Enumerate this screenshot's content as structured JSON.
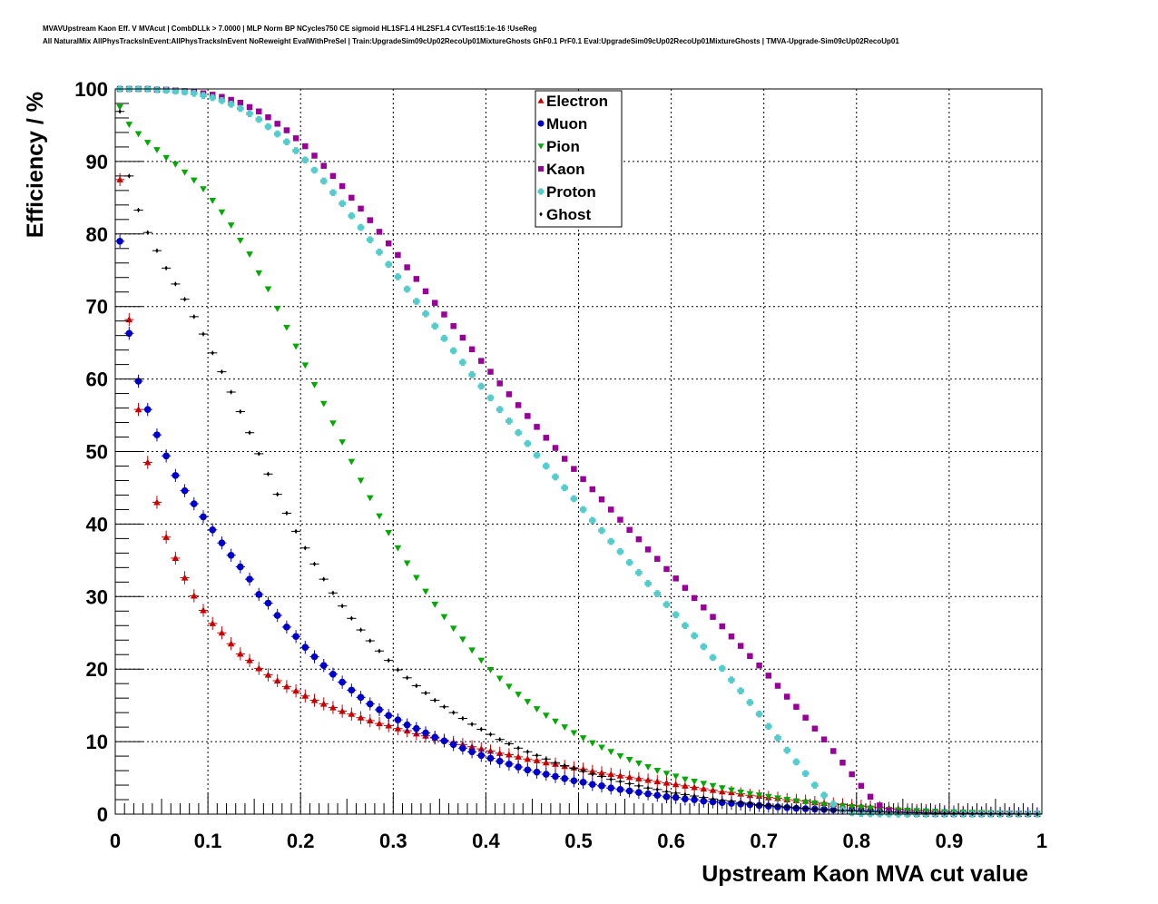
{
  "header": {
    "line1": "MVAVUpstream Kaon Eff. V MVAcut | CombDLLk > 7.0000 | MLP Norm BP NCycles750 CE sigmoid HL1SF1.4 HL2SF1.4 CVTest15:1e-16 !UseReg",
    "line2": "All NaturalMix AllPhysTracksInEvent:AllPhysTracksInEvent NoReweight EvalWithPreSel | Train:UpgradeSim09cUp02RecoUp01MixtureGhosts GhF0.1 PrF0.1 Eval:UpgradeSim09cUp02RecoUp01MixtureGhosts | TMVA-Upgrade-Sim09cUp02RecoUp01"
  },
  "chart_data": {
    "type": "scatter",
    "xlabel": "Upstream Kaon MVA cut value",
    "ylabel": "Efficiency / %",
    "xlim": [
      0,
      1
    ],
    "ylim": [
      0,
      100
    ],
    "xticks": [
      "0",
      "0.1",
      "0.2",
      "0.3",
      "0.4",
      "0.5",
      "0.6",
      "0.7",
      "0.8",
      "0.9",
      "1"
    ],
    "yticks": [
      "0",
      "10",
      "20",
      "30",
      "40",
      "50",
      "60",
      "70",
      "80",
      "90",
      "100"
    ],
    "grid": true,
    "legend_position": "top-center",
    "x": [
      0.005,
      0.015,
      0.025,
      0.035,
      0.045,
      0.055,
      0.065,
      0.075,
      0.085,
      0.095,
      0.105,
      0.115,
      0.125,
      0.135,
      0.145,
      0.155,
      0.165,
      0.175,
      0.185,
      0.195,
      0.205,
      0.215,
      0.225,
      0.235,
      0.245,
      0.255,
      0.265,
      0.275,
      0.285,
      0.295,
      0.305,
      0.315,
      0.325,
      0.335,
      0.345,
      0.355,
      0.365,
      0.375,
      0.385,
      0.395,
      0.405,
      0.415,
      0.425,
      0.435,
      0.445,
      0.455,
      0.465,
      0.475,
      0.485,
      0.495,
      0.505,
      0.515,
      0.525,
      0.535,
      0.545,
      0.555,
      0.565,
      0.575,
      0.585,
      0.595,
      0.605,
      0.615,
      0.625,
      0.635,
      0.645,
      0.655,
      0.665,
      0.675,
      0.685,
      0.695,
      0.705,
      0.715,
      0.725,
      0.735,
      0.745,
      0.755,
      0.765,
      0.775,
      0.785,
      0.795,
      0.805,
      0.815,
      0.825,
      0.835,
      0.845,
      0.855,
      0.865,
      0.875,
      0.885,
      0.895,
      0.905,
      0.915,
      0.925,
      0.935,
      0.945,
      0.955,
      0.965,
      0.975,
      0.985,
      0.995
    ],
    "series": [
      {
        "name": "Electron",
        "marker": "triangle-up",
        "color": "#cc0000",
        "values": [
          87.5,
          68.2,
          55.8,
          48.5,
          43.0,
          38.2,
          35.3,
          32.6,
          30.1,
          28.1,
          26.3,
          25.0,
          23.5,
          22.1,
          21.2,
          20.1,
          19.2,
          18.4,
          17.6,
          17.0,
          16.3,
          15.7,
          15.2,
          14.7,
          14.2,
          13.8,
          13.3,
          12.9,
          12.5,
          12.2,
          11.8,
          11.5,
          11.1,
          10.8,
          10.5,
          10.2,
          9.9,
          9.6,
          9.3,
          9.0,
          8.7,
          8.4,
          8.2,
          7.9,
          7.6,
          7.4,
          7.1,
          6.9,
          6.6,
          6.4,
          6.2,
          5.9,
          5.7,
          5.5,
          5.3,
          5.1,
          4.9,
          4.7,
          4.5,
          4.3,
          4.1,
          3.9,
          3.7,
          3.5,
          3.3,
          3.1,
          3.0,
          2.8,
          2.6,
          2.5,
          2.3,
          2.2,
          2.0,
          1.9,
          1.8,
          1.6,
          1.5,
          1.4,
          1.3,
          1.2,
          1.1,
          1.0,
          0.9,
          0.8,
          0.7,
          0.6,
          0.5,
          0.5,
          0.4,
          0.35,
          0.3,
          0.25,
          0.2,
          0.18,
          0.15,
          0.12,
          0.1,
          0.08,
          0.06,
          0.04
        ]
      },
      {
        "name": "Muon",
        "marker": "circle",
        "color": "#0000cc",
        "values": [
          79.0,
          66.3,
          59.7,
          55.8,
          52.3,
          49.4,
          46.7,
          44.6,
          42.8,
          41.0,
          39.2,
          37.4,
          35.7,
          34.1,
          32.4,
          30.3,
          29.1,
          27.4,
          25.8,
          24.5,
          23.0,
          21.7,
          20.5,
          19.3,
          18.2,
          17.1,
          16.1,
          15.2,
          14.4,
          13.6,
          13.0,
          12.3,
          11.8,
          11.2,
          10.6,
          10.1,
          9.6,
          9.1,
          8.6,
          8.1,
          7.7,
          7.3,
          6.9,
          6.5,
          6.1,
          5.8,
          5.5,
          5.2,
          4.9,
          4.6,
          4.4,
          4.1,
          3.9,
          3.6,
          3.4,
          3.2,
          3.0,
          2.8,
          2.6,
          2.4,
          2.3,
          2.1,
          2.0,
          1.8,
          1.7,
          1.6,
          1.5,
          1.4,
          1.3,
          1.2,
          1.1,
          1.0,
          0.9,
          0.8,
          0.75,
          0.7,
          0.65,
          0.6,
          0.55,
          0.5,
          0.45,
          0.4,
          0.35,
          0.3,
          0.28,
          0.25,
          0.22,
          0.2,
          0.18,
          0.16,
          0.14,
          0.12,
          0.1,
          0.09,
          0.08,
          0.07,
          0.06,
          0.05,
          0.04,
          0.03
        ]
      },
      {
        "name": "Pion",
        "marker": "triangle-down",
        "color": "#00aa00",
        "values": [
          97.5,
          95.1,
          93.8,
          92.6,
          91.6,
          90.5,
          89.6,
          88.5,
          87.4,
          86.2,
          84.6,
          83.0,
          81.2,
          79.1,
          77.2,
          74.6,
          72.4,
          69.7,
          67.1,
          64.5,
          61.9,
          59.2,
          56.6,
          53.9,
          51.3,
          48.6,
          46.0,
          43.6,
          41.1,
          38.8,
          36.7,
          34.6,
          32.6,
          30.7,
          28.9,
          27.2,
          25.6,
          24.1,
          22.6,
          21.2,
          19.9,
          18.7,
          17.6,
          16.5,
          15.5,
          14.5,
          13.6,
          12.8,
          12.0,
          11.2,
          10.5,
          9.8,
          9.2,
          8.6,
          8.0,
          7.5,
          7.0,
          6.5,
          6.0,
          5.6,
          5.2,
          4.8,
          4.5,
          4.2,
          3.9,
          3.6,
          3.3,
          3.0,
          2.8,
          2.6,
          2.4,
          2.2,
          2.0,
          1.8,
          1.6,
          1.5,
          1.3,
          1.2,
          1.1,
          1.0,
          0.9,
          0.8,
          0.7,
          0.6,
          0.55,
          0.5,
          0.45,
          0.4,
          0.35,
          0.3,
          0.27,
          0.24,
          0.21,
          0.18,
          0.15,
          0.12,
          0.1,
          0.08,
          0.06,
          0.04
        ]
      },
      {
        "name": "Kaon",
        "marker": "square",
        "color": "#990099",
        "values": [
          100,
          100,
          100,
          100,
          99.9,
          99.9,
          99.8,
          99.7,
          99.6,
          99.4,
          99.2,
          98.9,
          98.5,
          98.1,
          97.5,
          96.9,
          96.1,
          95.2,
          94.3,
          93.2,
          92.1,
          90.8,
          89.4,
          88.0,
          86.6,
          85.0,
          83.5,
          81.9,
          80.3,
          78.7,
          77.1,
          75.4,
          73.8,
          72.1,
          70.5,
          68.9,
          67.3,
          65.7,
          64.1,
          62.5,
          61.0,
          59.4,
          57.9,
          56.4,
          54.9,
          53.4,
          51.9,
          50.5,
          49.0,
          47.6,
          46.2,
          44.8,
          43.4,
          42.0,
          40.6,
          39.2,
          37.9,
          36.5,
          35.2,
          33.8,
          32.5,
          31.2,
          29.8,
          28.5,
          27.2,
          25.9,
          24.5,
          23.2,
          21.8,
          20.5,
          19.1,
          17.7,
          16.2,
          14.8,
          13.3,
          11.8,
          10.3,
          8.7,
          7.1,
          5.5,
          3.9,
          2.4,
          1.2,
          0.5,
          0.2,
          0.1,
          0.05,
          0.03,
          0.02,
          0.01,
          0.01,
          0.01,
          0.01,
          0.01,
          0.01,
          0.01,
          0.01,
          0.01,
          0.01,
          0.01
        ]
      },
      {
        "name": "Proton",
        "marker": "cross",
        "color": "#55cccc",
        "values": [
          100,
          100,
          100,
          100,
          99.9,
          99.8,
          99.7,
          99.6,
          99.4,
          99.1,
          98.8,
          98.4,
          97.9,
          97.3,
          96.6,
          95.8,
          94.8,
          93.8,
          92.7,
          91.5,
          90.2,
          88.8,
          87.3,
          85.7,
          84.2,
          82.5,
          80.9,
          79.2,
          77.5,
          75.8,
          74.1,
          72.4,
          70.7,
          69.0,
          67.3,
          65.6,
          63.9,
          62.3,
          60.6,
          59.0,
          57.4,
          55.8,
          54.2,
          52.6,
          51.1,
          49.5,
          48.0,
          46.5,
          45.0,
          43.5,
          42.0,
          40.5,
          39.1,
          37.6,
          36.2,
          34.7,
          33.3,
          31.8,
          30.4,
          28.9,
          27.5,
          26.0,
          24.6,
          23.1,
          21.6,
          20.1,
          18.5,
          17.0,
          15.4,
          13.8,
          12.1,
          10.5,
          8.8,
          7.2,
          5.6,
          4.0,
          2.6,
          1.4,
          0.6,
          0.2,
          0.1,
          0.05,
          0.03,
          0.02,
          0.01,
          0.01,
          0.01,
          0.01,
          0.01,
          0.01,
          0.01,
          0.01,
          0.01,
          0.01,
          0.01,
          0.01,
          0.01,
          0.01,
          0.01,
          0.01
        ]
      },
      {
        "name": "Ghost",
        "marker": "diamond",
        "color": "#000000",
        "values": [
          96.9,
          88.0,
          83.3,
          80.2,
          77.7,
          75.3,
          73.1,
          71.0,
          68.6,
          66.2,
          63.6,
          61.0,
          58.2,
          55.5,
          52.6,
          49.7,
          46.9,
          44.1,
          41.5,
          39.0,
          36.7,
          34.5,
          32.4,
          30.5,
          28.7,
          27.0,
          25.4,
          23.9,
          22.5,
          21.2,
          19.9,
          18.8,
          17.7,
          16.7,
          15.7,
          14.8,
          14.0,
          13.2,
          12.4,
          11.7,
          11.0,
          10.3,
          9.7,
          9.1,
          8.6,
          8.1,
          7.6,
          7.1,
          6.7,
          6.3,
          5.9,
          5.5,
          5.2,
          4.8,
          4.5,
          4.2,
          3.9,
          3.6,
          3.4,
          3.1,
          2.9,
          2.7,
          2.5,
          2.3,
          2.1,
          1.9,
          1.8,
          1.6,
          1.5,
          1.3,
          1.2,
          1.1,
          1.0,
          0.9,
          0.8,
          0.7,
          0.6,
          0.55,
          0.5,
          0.45,
          0.4,
          0.35,
          0.3,
          0.27,
          0.24,
          0.21,
          0.18,
          0.15,
          0.13,
          0.11,
          0.09,
          0.08,
          0.07,
          0.06,
          0.05,
          0.04,
          0.03,
          0.02,
          0.02,
          0.01
        ]
      }
    ]
  }
}
